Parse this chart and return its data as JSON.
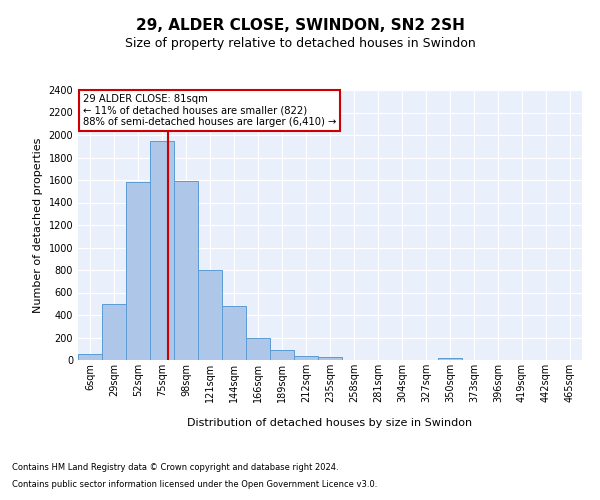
{
  "title1": "29, ALDER CLOSE, SWINDON, SN2 2SH",
  "title2": "Size of property relative to detached houses in Swindon",
  "xlabel": "Distribution of detached houses by size in Swindon",
  "ylabel": "Number of detached properties",
  "footnote1": "Contains HM Land Registry data © Crown copyright and database right 2024.",
  "footnote2": "Contains public sector information licensed under the Open Government Licence v3.0.",
  "annotation_title": "29 ALDER CLOSE: 81sqm",
  "annotation_line1": "← 11% of detached houses are smaller (822)",
  "annotation_line2": "88% of semi-detached houses are larger (6,410) →",
  "bar_color": "#aec6e8",
  "bar_edge_color": "#5b9bd5",
  "vline_color": "#cc0000",
  "annotation_box_color": "#cc0000",
  "categories": [
    "6sqm",
    "29sqm",
    "52sqm",
    "75sqm",
    "98sqm",
    "121sqm",
    "144sqm",
    "166sqm",
    "189sqm",
    "212sqm",
    "235sqm",
    "258sqm",
    "281sqm",
    "304sqm",
    "327sqm",
    "350sqm",
    "373sqm",
    "396sqm",
    "419sqm",
    "442sqm",
    "465sqm"
  ],
  "values": [
    55,
    500,
    1580,
    1950,
    1590,
    800,
    480,
    195,
    90,
    35,
    28,
    0,
    0,
    0,
    0,
    20,
    0,
    0,
    0,
    0,
    0
  ],
  "n_bins": 21,
  "ylim": [
    0,
    2400
  ],
  "yticks": [
    0,
    200,
    400,
    600,
    800,
    1000,
    1200,
    1400,
    1600,
    1800,
    2000,
    2200,
    2400
  ],
  "vline_bin_index": 3.26,
  "background_color": "#eaf0fb",
  "fig_background": "#ffffff",
  "title_fontsize": 11,
  "subtitle_fontsize": 9,
  "ylabel_fontsize": 8,
  "xlabel_fontsize": 8,
  "tick_fontsize": 7,
  "footnote_fontsize": 6
}
